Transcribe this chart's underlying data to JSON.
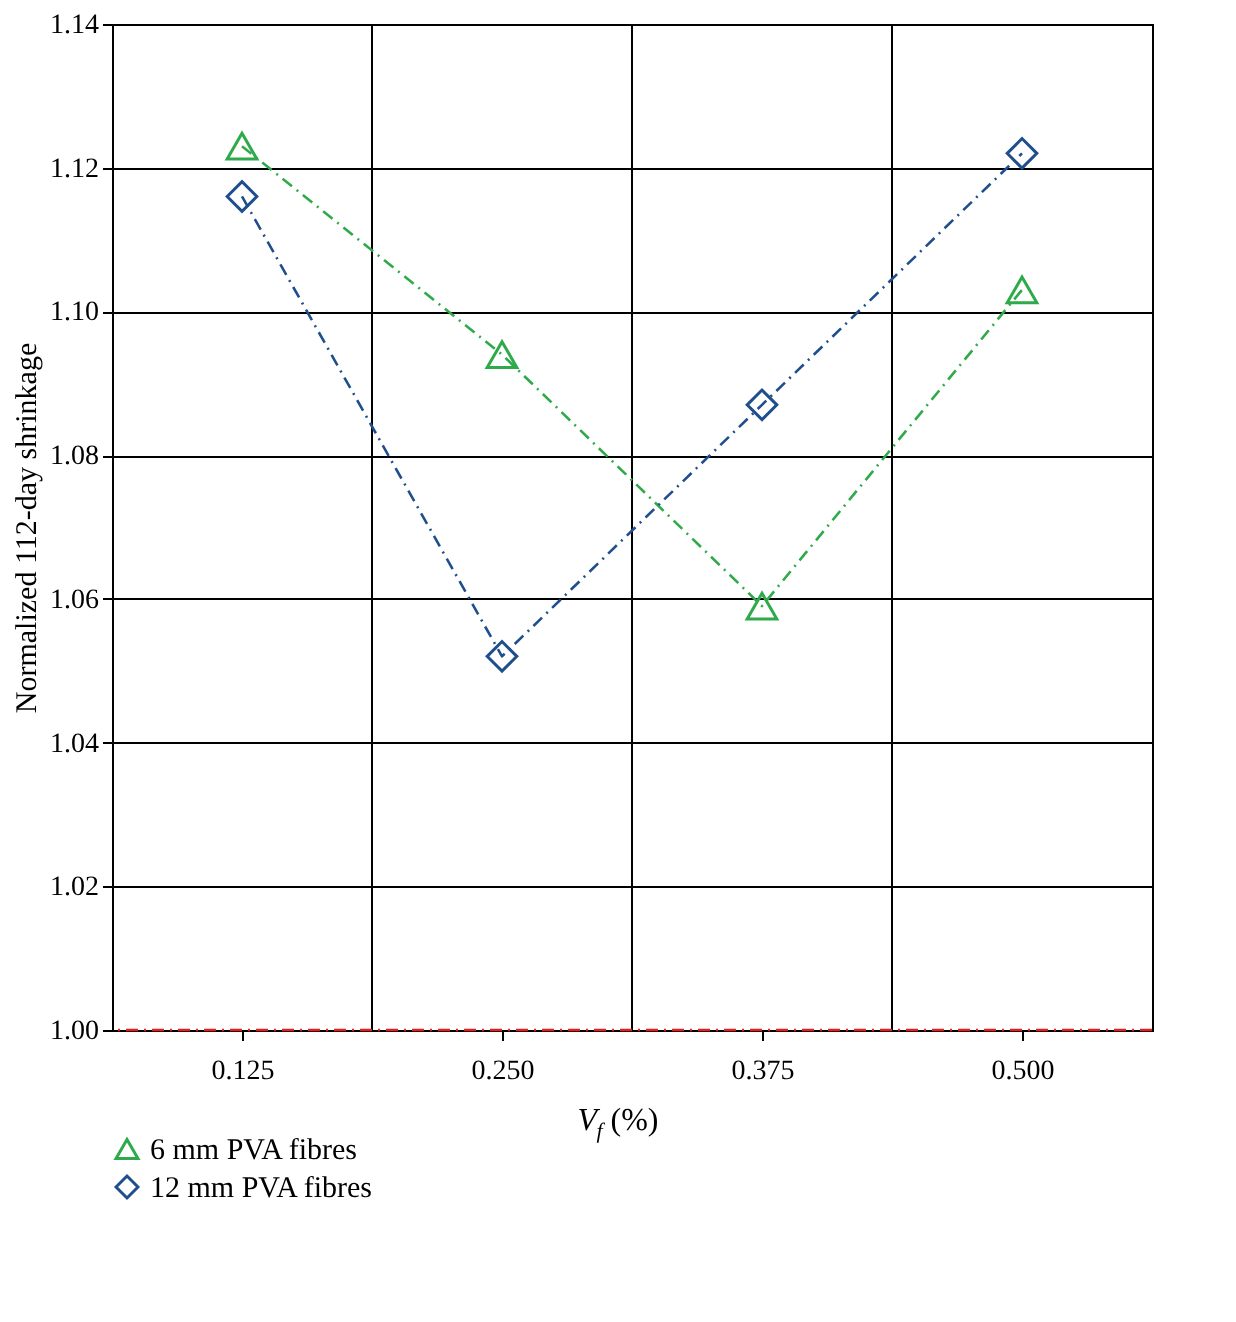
{
  "chart_data": {
    "type": "line",
    "xlabel": "V$_{f}$ (%)",
    "ylabel": "Normalized 112-day shrinkage",
    "categories": [
      "0.125",
      "0.250",
      "0.375",
      "0.500"
    ],
    "series": [
      {
        "name": "6 mm PVA fibres",
        "color": "#2eaa4a",
        "marker": "triangle",
        "values": [
          1.123,
          1.094,
          1.059,
          1.103
        ]
      },
      {
        "name": "12 mm PVA fibres",
        "color": "#1f4e8c",
        "marker": "diamond",
        "values": [
          1.116,
          1.052,
          1.087,
          1.122
        ]
      }
    ],
    "ylim": [
      1.0,
      1.14
    ],
    "yticks": [
      {
        "value": 1.0,
        "label": "1.00"
      },
      1.02,
      1.04,
      1.06,
      1.08,
      {
        "value": 1.1,
        "label": "1.10"
      },
      1.12,
      1.14
    ],
    "ref_lines": [
      {
        "axis": "y",
        "value": 1.0,
        "color": "#e02020",
        "line_style": "dashed"
      }
    ],
    "grid": true,
    "legend": "bottom left",
    "line_style": "dashed"
  }
}
